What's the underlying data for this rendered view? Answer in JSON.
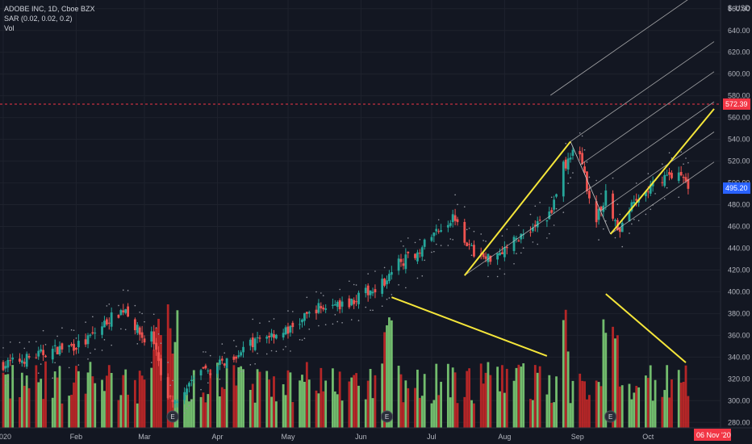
{
  "legend": {
    "symbol": "ADOBE INC, 1D, Cboe BZX",
    "sar": "SAR (0.02, 0.02, 0.2)",
    "vol": "Vol"
  },
  "axis": {
    "currency_label": "USD",
    "currency_prefix": "$",
    "y_ticks": [
      280,
      300,
      320,
      340,
      360,
      380,
      400,
      420,
      440,
      460,
      480,
      500,
      520,
      540,
      560,
      580,
      600,
      620,
      640,
      660
    ],
    "x_labels": [
      {
        "label": "2020",
        "day": 0
      },
      {
        "label": "Feb",
        "day": 31
      },
      {
        "label": "Mar",
        "day": 60
      },
      {
        "label": "Apr",
        "day": 91
      },
      {
        "label": "May",
        "day": 121
      },
      {
        "label": "Jun",
        "day": 152
      },
      {
        "label": "Jul",
        "day": 182
      },
      {
        "label": "Aug",
        "day": 213
      },
      {
        "label": "Sep",
        "day": 244
      },
      {
        "label": "Oct",
        "day": 274
      }
    ]
  },
  "price_badges": {
    "target_label": "572.39",
    "target_value": 572.39,
    "target_color": "#f23645",
    "last_label": "495.20",
    "last_value": 495.2,
    "last_color": "#2962ff"
  },
  "date_badge": {
    "label": "06 Nov '20",
    "color": "#f23645"
  },
  "earnings_markers": [
    {
      "label": "E",
      "day": 72
    },
    {
      "label": "E",
      "day": 163
    },
    {
      "label": "E",
      "day": 258
    }
  ],
  "colors": {
    "up": "#26a69a",
    "down": "#ef5350",
    "vol_up": "#7dce75",
    "vol_down": "#c62828",
    "drawing": "#f5e63a",
    "pitchfork": "#c8c8c8"
  },
  "chart_data": {
    "type": "candlestick",
    "x_unit": "days since 2020-01-02",
    "close_anchors": [
      {
        "day": 0,
        "close": 333
      },
      {
        "day": 12,
        "close": 340
      },
      {
        "day": 22,
        "close": 347
      },
      {
        "day": 34,
        "close": 352
      },
      {
        "day": 45,
        "close": 375
      },
      {
        "day": 52,
        "close": 385
      },
      {
        "day": 56,
        "close": 368
      },
      {
        "day": 60,
        "close": 355
      },
      {
        "day": 63,
        "close": 362
      },
      {
        "day": 69,
        "close": 305
      },
      {
        "day": 75,
        "close": 295
      },
      {
        "day": 80,
        "close": 320
      },
      {
        "day": 90,
        "close": 330
      },
      {
        "day": 100,
        "close": 345
      },
      {
        "day": 112,
        "close": 360
      },
      {
        "day": 122,
        "close": 365
      },
      {
        "day": 133,
        "close": 385
      },
      {
        "day": 145,
        "close": 388
      },
      {
        "day": 155,
        "close": 400
      },
      {
        "day": 162,
        "close": 410
      },
      {
        "day": 167,
        "close": 425
      },
      {
        "day": 175,
        "close": 435
      },
      {
        "day": 186,
        "close": 460
      },
      {
        "day": 192,
        "close": 470
      },
      {
        "day": 198,
        "close": 440
      },
      {
        "day": 205,
        "close": 430
      },
      {
        "day": 213,
        "close": 440
      },
      {
        "day": 222,
        "close": 455
      },
      {
        "day": 232,
        "close": 470
      },
      {
        "day": 238,
        "close": 515
      },
      {
        "day": 244,
        "close": 532
      },
      {
        "day": 247,
        "close": 505
      },
      {
        "day": 252,
        "close": 465
      },
      {
        "day": 256,
        "close": 490
      },
      {
        "day": 261,
        "close": 455
      },
      {
        "day": 266,
        "close": 475
      },
      {
        "day": 272,
        "close": 490
      },
      {
        "day": 280,
        "close": 505
      },
      {
        "day": 286,
        "close": 510
      },
      {
        "day": 292,
        "close": 495
      }
    ],
    "volume_range": [
      0,
      100
    ],
    "drawings": [
      {
        "type": "trendline",
        "from": {
          "day": 196,
          "price": 415
        },
        "to": {
          "day": 241,
          "price": 538
        }
      },
      {
        "type": "trendline",
        "from": {
          "day": 258,
          "price": 453
        },
        "to": {
          "day": 302,
          "price": 568
        }
      },
      {
        "type": "trendline",
        "from": {
          "day": 165,
          "price": 395
        },
        "to": {
          "day": 231,
          "price": 341
        }
      },
      {
        "type": "trendline",
        "from": {
          "day": 256,
          "price": 398
        },
        "to": {
          "day": 290,
          "price": 335
        }
      }
    ],
    "pitchfork": {
      "p0": {
        "day": 196,
        "price": 415
      },
      "p1": {
        "day": 241,
        "price": 538
      },
      "p2": {
        "day": 258,
        "price": 453
      }
    },
    "ylim": [
      275,
      668
    ],
    "xlim": [
      0,
      302
    ]
  }
}
